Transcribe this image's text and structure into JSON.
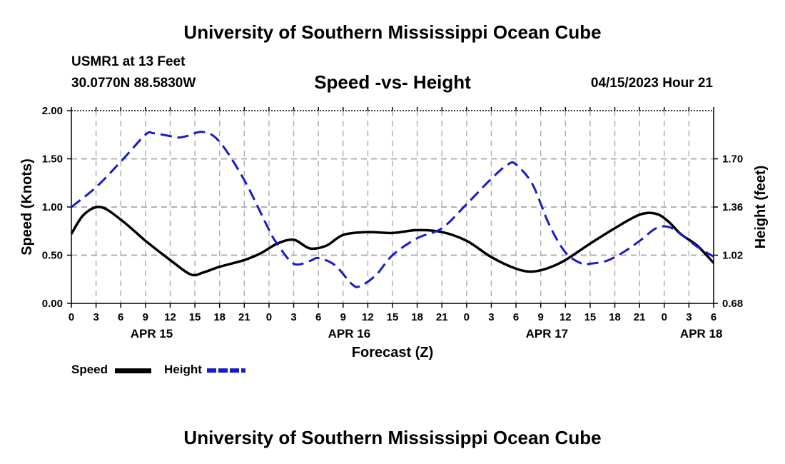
{
  "header": {
    "title": "University of Southern Mississippi Ocean Cube",
    "station": "USMR1 at 13 Feet",
    "location": "30.0770N  88.5830W",
    "datetime": "04/15/2023 Hour 21",
    "footer_title": "University of Southern Mississippi Ocean Cube"
  },
  "legend": {
    "speed_label": "Speed",
    "height_label": "Height"
  },
  "colors": {
    "speed": "#000000",
    "height": "#1a1acc",
    "grid": "#b0b0b0"
  },
  "chart_data": {
    "type": "line",
    "title": "Speed -vs- Height",
    "xlabel": "Forecast (Z)",
    "ylabel": "Speed (Knots)",
    "y2label": "Height (feet)",
    "ylim": [
      0,
      2.0
    ],
    "y2lim": [
      0.68,
      2.04
    ],
    "xlim": [
      0,
      78
    ],
    "yticks": [
      "0.00",
      "0.50",
      "1.00",
      "1.50",
      "2.00"
    ],
    "y2ticks": [
      "0.68",
      "1.02",
      "1.36",
      "1.70"
    ],
    "xtick_labels": [
      "0",
      "3",
      "6",
      "9",
      "12",
      "15",
      "18",
      "21",
      "0",
      "3",
      "6",
      "9",
      "12",
      "15",
      "18",
      "21",
      "0",
      "3",
      "6",
      "9",
      "12",
      "15",
      "18",
      "21",
      "0",
      "3",
      "6"
    ],
    "date_labels": [
      {
        "label": "APR 15",
        "hour": 9.75
      },
      {
        "label": "APR 16",
        "hour": 33.75
      },
      {
        "label": "APR 17",
        "hour": 57.75
      },
      {
        "label": "APR 18",
        "hour": 76.5
      }
    ],
    "series": [
      {
        "name": "Speed",
        "axis": "left",
        "style": "solid",
        "x": [
          0,
          1.5,
          3.5,
          6,
          9,
          12,
          14.5,
          16,
          18,
          21,
          23,
          25,
          27,
          29,
          31,
          33,
          36,
          39,
          42,
          45,
          48,
          51,
          54,
          56,
          58,
          60,
          63,
          66,
          69,
          71,
          72.5,
          74,
          76,
          78
        ],
        "y": [
          0.72,
          0.92,
          1.0,
          0.87,
          0.65,
          0.45,
          0.3,
          0.32,
          0.38,
          0.45,
          0.52,
          0.62,
          0.66,
          0.57,
          0.6,
          0.71,
          0.74,
          0.73,
          0.76,
          0.74,
          0.65,
          0.48,
          0.36,
          0.33,
          0.37,
          0.45,
          0.62,
          0.78,
          0.92,
          0.93,
          0.85,
          0.72,
          0.6,
          0.42
        ]
      },
      {
        "name": "Height",
        "axis": "right",
        "style": "dashed",
        "x": [
          0,
          3,
          6,
          9,
          10,
          12,
          13,
          14,
          16,
          18,
          21,
          24,
          25,
          27,
          29,
          30,
          32,
          34,
          35,
          37,
          39,
          42,
          45,
          48,
          51,
          53,
          54,
          56,
          58,
          60,
          62,
          63,
          65,
          67,
          69,
          71,
          72.5,
          74,
          76,
          78
        ],
        "y": [
          1.36,
          1.5,
          1.68,
          1.87,
          1.88,
          1.86,
          1.85,
          1.86,
          1.89,
          1.82,
          1.55,
          1.2,
          1.1,
          0.96,
          0.98,
          1.0,
          0.95,
          0.82,
          0.8,
          0.88,
          1.02,
          1.14,
          1.21,
          1.38,
          1.56,
          1.66,
          1.66,
          1.52,
          1.24,
          1.04,
          0.96,
          0.96,
          0.98,
          1.04,
          1.12,
          1.21,
          1.22,
          1.17,
          1.08,
          1.01
        ]
      }
    ]
  }
}
